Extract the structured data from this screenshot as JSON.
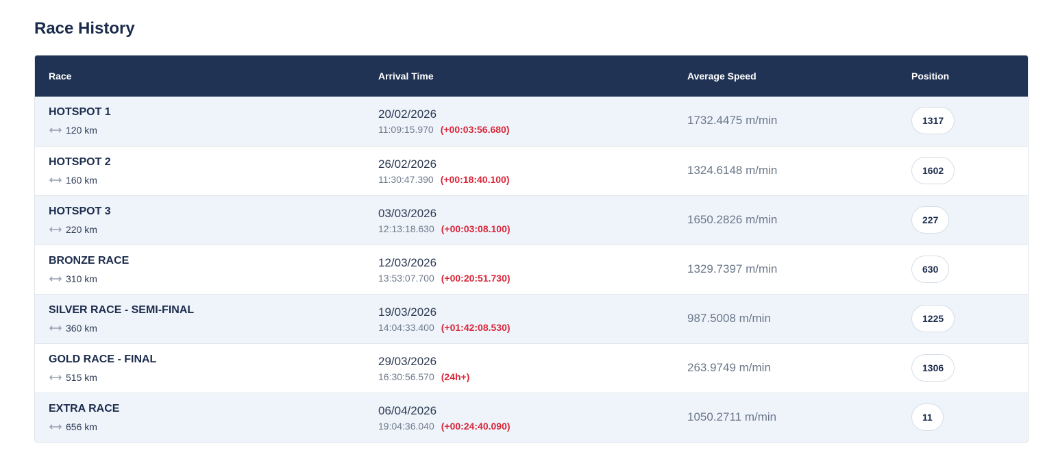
{
  "page": {
    "title": "Race History"
  },
  "table": {
    "headers": {
      "race": "Race",
      "arrival": "Arrival Time",
      "speed": "Average Speed",
      "position": "Position"
    },
    "rows": [
      {
        "name": "HOTSPOT 1",
        "distance": "120 km",
        "date": "20/02/2026",
        "time": "11:09:15.970",
        "delta": "(+00:03:56.680)",
        "speed": "1732.4475 m/min",
        "position": "1317"
      },
      {
        "name": "HOTSPOT 2",
        "distance": "160 km",
        "date": "26/02/2026",
        "time": "11:30:47.390",
        "delta": "(+00:18:40.100)",
        "speed": "1324.6148 m/min",
        "position": "1602"
      },
      {
        "name": "HOTSPOT 3",
        "distance": "220 km",
        "date": "03/03/2026",
        "time": "12:13:18.630",
        "delta": "(+00:03:08.100)",
        "speed": "1650.2826 m/min",
        "position": "227"
      },
      {
        "name": "BRONZE RACE",
        "distance": "310 km",
        "date": "12/03/2026",
        "time": "13:53:07.700",
        "delta": "(+00:20:51.730)",
        "speed": "1329.7397 m/min",
        "position": "630"
      },
      {
        "name": "SILVER RACE - SEMI-FINAL",
        "distance": "360 km",
        "date": "19/03/2026",
        "time": "14:04:33.400",
        "delta": "(+01:42:08.530)",
        "speed": "987.5008 m/min",
        "position": "1225"
      },
      {
        "name": "GOLD RACE - FINAL",
        "distance": "515 km",
        "date": "29/03/2026",
        "time": "16:30:56.570",
        "delta": "(24h+)",
        "speed": "263.9749 m/min",
        "position": "1306"
      },
      {
        "name": "EXTRA RACE",
        "distance": "656 km",
        "date": "06/04/2026",
        "time": "19:04:36.040",
        "delta": "(+00:24:40.090)",
        "speed": "1050.2711 m/min",
        "position": "11"
      }
    ]
  },
  "icons": {
    "distance": "horizontal-arrows-icon"
  },
  "colors": {
    "header_bg": "#203354",
    "odd_row_bg": "#eff4fb",
    "delta_red": "#d92638"
  }
}
